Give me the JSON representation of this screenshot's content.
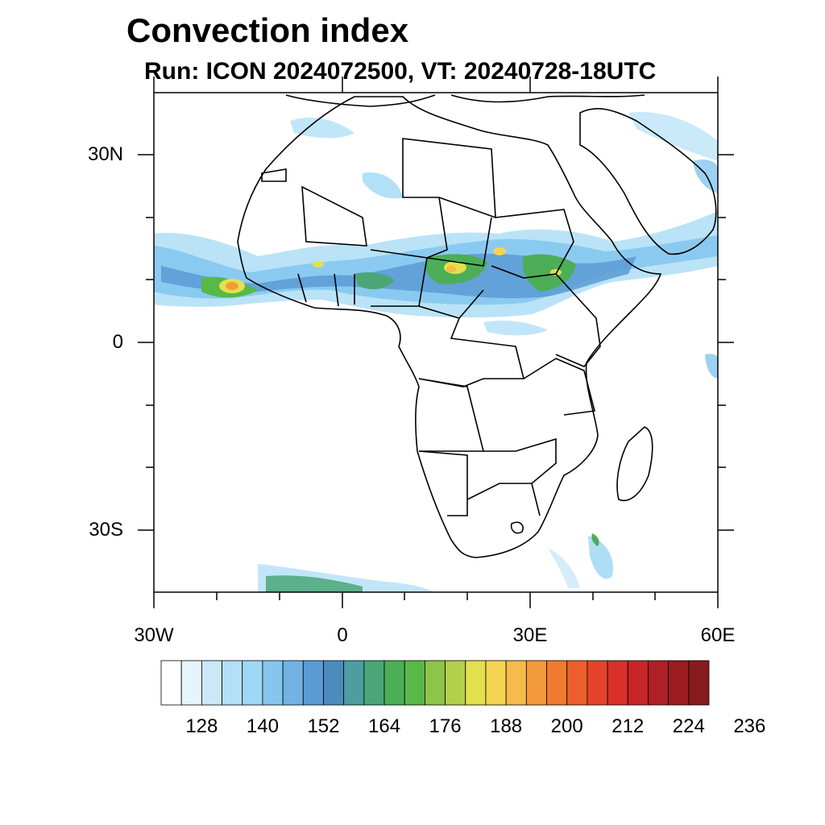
{
  "title": "Convection index",
  "subtitle": "Run: ICON 2024072500,  VT: 20240728-18UTC",
  "axes": {
    "lat_labels": [
      "30N",
      "0",
      "30S"
    ],
    "lon_labels": [
      "30W",
      "0",
      "30E",
      "60E"
    ]
  },
  "colorbar": {
    "labels": [
      "128",
      "140",
      "152",
      "164",
      "176",
      "188",
      "200",
      "212",
      "224",
      "236"
    ],
    "colors": [
      "#ffffff",
      "#e6f4fc",
      "#cbe8f8",
      "#b3e0f7",
      "#9fd8f5",
      "#86c6ee",
      "#73b2e3",
      "#5a9bd3",
      "#4d8bbf",
      "#4e9da0",
      "#4aa677",
      "#4cae56",
      "#58b848",
      "#8ec449",
      "#b3cf4c",
      "#e2e04e",
      "#f6d452",
      "#f6bb4a",
      "#f39b3a",
      "#ef7a30",
      "#ec5e2c",
      "#e4432a",
      "#d9302a",
      "#c8242a",
      "#b01f26",
      "#9a1b20",
      "#871a1c"
    ]
  },
  "map": {
    "extent": "30W-60E, 40S-40N",
    "colors": {
      "coast": "#000000",
      "frame": "#000000"
    }
  }
}
